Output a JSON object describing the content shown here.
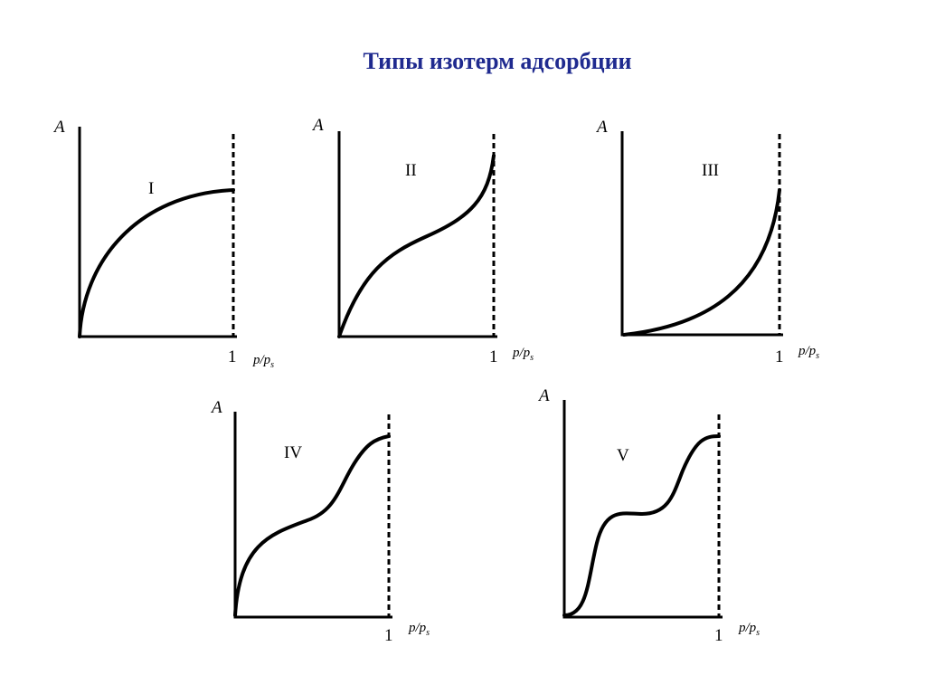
{
  "title": "Типы изотерм адсорбции",
  "panels": [
    {
      "y_label": "A",
      "label": "I",
      "tick_label": "1",
      "x_label": "p/p",
      "x_label_sub": "s"
    },
    {
      "y_label": "A",
      "label": "II",
      "tick_label": "1",
      "x_label": "p/p",
      "x_label_sub": "s"
    },
    {
      "y_label": "A",
      "label": "III",
      "tick_label": "1",
      "x_label": "p/p",
      "x_label_sub": "s"
    },
    {
      "y_label": "A",
      "label": "IV",
      "tick_label": "1",
      "x_label": "p/p",
      "x_label_sub": "s"
    },
    {
      "y_label": "A",
      "label": "V",
      "tick_label": "1",
      "x_label": "p/p",
      "x_label_sub": "s"
    }
  ]
}
